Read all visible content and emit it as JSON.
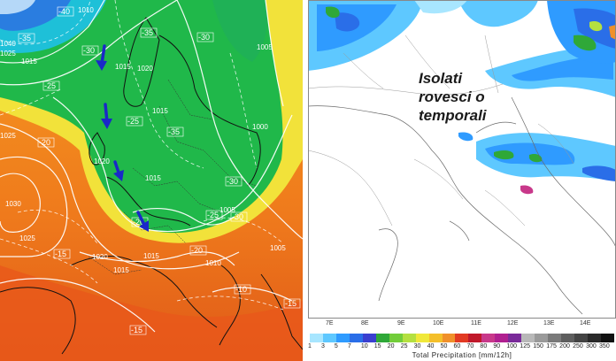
{
  "left_map": {
    "isobar_labels": [
      "1010",
      "1015",
      "1020",
      "1015",
      "1000",
      "1005",
      "1005",
      "1010",
      "1015",
      "1020",
      "1015",
      "1015",
      "1020",
      "1025",
      "1030",
      "1005",
      "1040",
      "1025",
      "1015",
      "1025"
    ],
    "temp_labels": [
      "-40",
      "-35",
      "-30",
      "-35",
      "-25",
      "-30",
      "-20",
      "-15",
      "-20",
      "-15",
      "-10",
      "-15",
      "-25",
      "-30",
      "-35",
      "-30",
      "-20",
      "-25"
    ],
    "colors": {
      "deep_cold": "#2a7de0",
      "cold": "#1ec0d8",
      "trough": "#20b84a",
      "mild": "#f2e23a",
      "warm": "#f59a20",
      "hot": "#ec6418",
      "arrow": "#1a28c8"
    }
  },
  "right_map": {
    "annotation_lines": [
      "Isolati",
      "rovesci o",
      "temporali"
    ],
    "lon_labels": [
      "7E",
      "8E",
      "9E",
      "10E",
      "11E",
      "12E",
      "13E",
      "14E"
    ],
    "legend": {
      "levels": [
        "1",
        "3",
        "5",
        "7",
        "10",
        "15",
        "20",
        "25",
        "30",
        "40",
        "50",
        "60",
        "70",
        "80",
        "90",
        "100",
        "125",
        "150",
        "175",
        "200",
        "250",
        "300",
        "350"
      ],
      "colors": [
        "#a8e6ff",
        "#5ec8ff",
        "#2f9bff",
        "#2a6ee8",
        "#3a3fd0",
        "#2fa838",
        "#72cd3a",
        "#b4e040",
        "#f0e83a",
        "#f4bf2a",
        "#f0902a",
        "#e23a22",
        "#c0182a",
        "#c8388a",
        "#b02090",
        "#7a2a9a",
        "#b8b8b8",
        "#9a9a9a",
        "#7a7a7a",
        "#5e5e5e",
        "#444444",
        "#2a2a2a",
        "#111111"
      ],
      "title": "Total Precipitation [mm/12h]"
    }
  }
}
